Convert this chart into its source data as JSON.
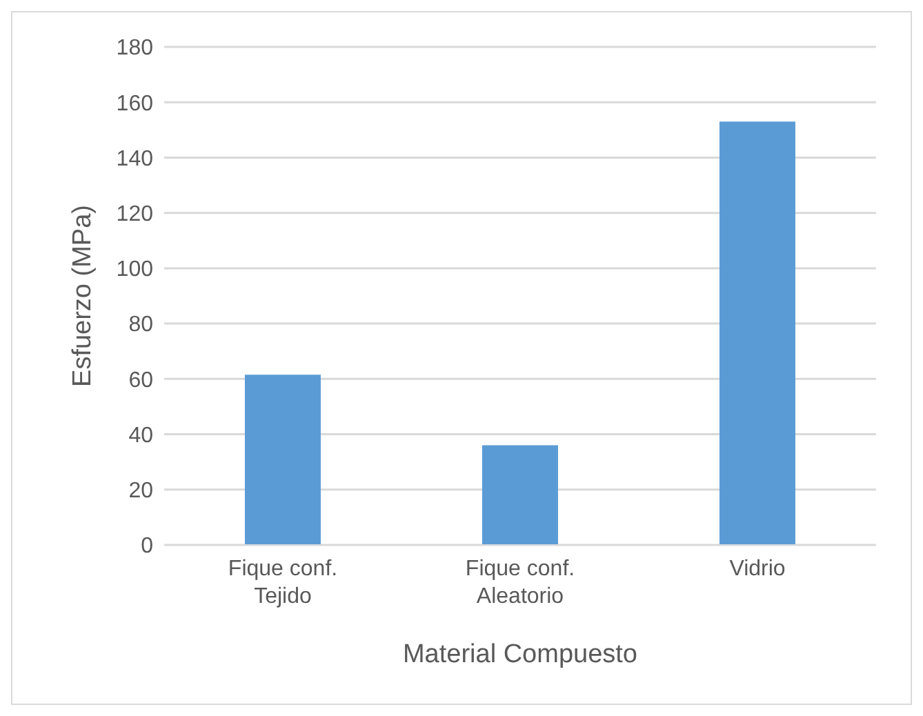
{
  "chart_data": {
    "type": "bar",
    "xlabel": "Material Compuesto",
    "ylabel": "Esfuerzo (MPa)",
    "categories": [
      "Fique conf. Tejido",
      "Fique conf. Aleatorio",
      "Vidrio"
    ],
    "values": [
      61.5,
      36,
      153
    ],
    "color": "#5b9bd5",
    "ylim": [
      0,
      180
    ],
    "yticks": [
      0,
      20,
      40,
      60,
      80,
      100,
      120,
      140,
      160,
      180
    ],
    "grid": "y"
  }
}
